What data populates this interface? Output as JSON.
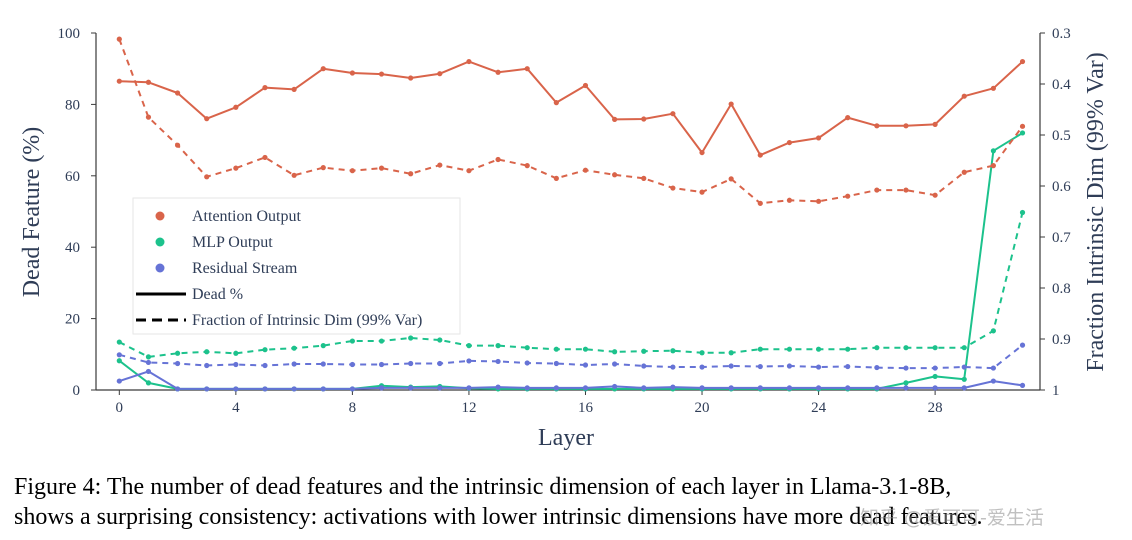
{
  "chart_data": {
    "type": "line",
    "xlabel": "Layer",
    "ylabel_left": "Dead Feature (%)",
    "ylabel_right": "Fraction Intrinsic Dim (99% Var)",
    "x": [
      0,
      1,
      2,
      3,
      4,
      5,
      6,
      7,
      8,
      9,
      10,
      11,
      12,
      13,
      14,
      15,
      16,
      17,
      18,
      19,
      20,
      21,
      22,
      23,
      24,
      25,
      26,
      27,
      28,
      29,
      30,
      31
    ],
    "xticks": [
      0,
      4,
      8,
      12,
      16,
      20,
      24,
      28
    ],
    "xlim": [
      -0.8,
      31.6
    ],
    "ylim_left": [
      0,
      100
    ],
    "yticks_left": [
      0,
      20,
      40,
      60,
      80,
      100
    ],
    "ylim_right": [
      1,
      0.3
    ],
    "yticks_right": [
      0.3,
      0.4,
      0.5,
      0.6,
      0.7,
      0.8,
      0.9,
      1
    ],
    "grid": false,
    "legend_position": "center-left",
    "series": [
      {
        "name": "Attention Output",
        "color": "#d9644a",
        "metric": "dead",
        "axis": "left",
        "values": [
          86.5,
          86.2,
          83.2,
          76,
          79.2,
          84.7,
          84.2,
          90,
          88.8,
          88.5,
          87.4,
          88.6,
          92,
          89,
          90,
          80.5,
          85.3,
          75.8,
          75.9,
          77.4,
          66.5,
          80.1,
          65.8,
          69.3,
          70.6,
          76.3,
          74,
          74,
          74.4,
          82.3,
          84.5,
          92
        ]
      },
      {
        "name": "MLP Output",
        "color": "#1cc28c",
        "metric": "dead",
        "axis": "left",
        "values": [
          8.2,
          2,
          0.3,
          0.3,
          0.3,
          0.3,
          0.3,
          0.3,
          0.3,
          1.2,
          0.8,
          1,
          0.5,
          0.3,
          0.3,
          0.3,
          0.3,
          0.3,
          0.3,
          0.3,
          0.3,
          0.3,
          0.3,
          0.3,
          0.3,
          0.3,
          0.3,
          2,
          3.8,
          3,
          67,
          72
        ]
      },
      {
        "name": "Residual Stream",
        "color": "#6673d6",
        "metric": "dead",
        "axis": "left",
        "values": [
          2.5,
          5.2,
          0.3,
          0.3,
          0.3,
          0.3,
          0.3,
          0.3,
          0.3,
          0.6,
          0.6,
          0.6,
          0.6,
          0.8,
          0.6,
          0.6,
          0.6,
          1,
          0.6,
          0.8,
          0.6,
          0.6,
          0.6,
          0.6,
          0.6,
          0.6,
          0.6,
          0.6,
          0.6,
          0.6,
          2.5,
          1.3
        ]
      },
      {
        "name": "Attention Output",
        "color": "#d9644a",
        "metric": "intrinsic",
        "axis": "right",
        "values": [
          0.312,
          0.465,
          0.52,
          0.582,
          0.565,
          0.544,
          0.579,
          0.564,
          0.57,
          0.565,
          0.576,
          0.559,
          0.57,
          0.548,
          0.56,
          0.585,
          0.569,
          0.578,
          0.585,
          0.604,
          0.612,
          0.586,
          0.634,
          0.628,
          0.63,
          0.62,
          0.608,
          0.608,
          0.618,
          0.573,
          0.56,
          0.483
        ]
      },
      {
        "name": "MLP Output",
        "color": "#1cc28c",
        "metric": "intrinsic",
        "axis": "right",
        "values": [
          0.906,
          0.935,
          0.928,
          0.925,
          0.928,
          0.921,
          0.918,
          0.913,
          0.904,
          0.904,
          0.898,
          0.902,
          0.913,
          0.913,
          0.917,
          0.92,
          0.92,
          0.925,
          0.924,
          0.923,
          0.927,
          0.927,
          0.92,
          0.92,
          0.92,
          0.92,
          0.917,
          0.917,
          0.917,
          0.917,
          0.884,
          0.652
        ]
      },
      {
        "name": "Residual Stream",
        "color": "#6673d6",
        "metric": "intrinsic",
        "axis": "right",
        "values": [
          0.931,
          0.946,
          0.948,
          0.952,
          0.95,
          0.952,
          0.949,
          0.949,
          0.95,
          0.95,
          0.948,
          0.948,
          0.943,
          0.944,
          0.947,
          0.948,
          0.951,
          0.949,
          0.953,
          0.955,
          0.955,
          0.953,
          0.954,
          0.953,
          0.955,
          0.954,
          0.956,
          0.957,
          0.957,
          0.955,
          0.957,
          0.912
        ]
      }
    ],
    "legend": {
      "entries": [
        {
          "label": "Attention Output",
          "kind": "marker",
          "color": "#d9644a"
        },
        {
          "label": "MLP Output",
          "kind": "marker",
          "color": "#1cc28c"
        },
        {
          "label": "Residual Stream",
          "kind": "marker",
          "color": "#6673d6"
        },
        {
          "label": "Dead %",
          "kind": "solid"
        },
        {
          "label": "Fraction of Intrinsic Dim (99% Var)",
          "kind": "dashed"
        }
      ]
    }
  },
  "caption": {
    "line1": "Figure 4: The number of dead features and the intrinsic dimension of each layer in Llama-3.1-8B,",
    "line2": "shows a surprising consistency: activations with lower intrinsic dimensions have more dead features."
  },
  "watermark": "知乎 @爱可可-爱生活"
}
